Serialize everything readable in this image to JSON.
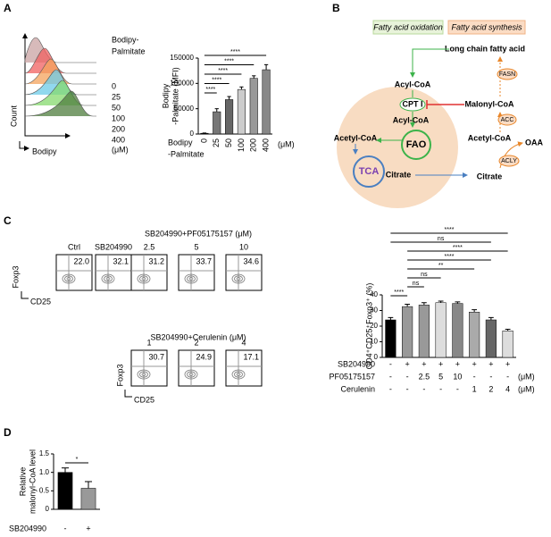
{
  "panel_labels": [
    "A",
    "B",
    "C",
    "D"
  ],
  "histogram": {
    "legend_title": [
      "Bodipy-",
      "Palmitate"
    ],
    "series": [
      "0",
      "25",
      "50",
      "100",
      "200",
      "400"
    ],
    "unit": "(μM)",
    "x_label": "Bodipy",
    "y_label": "Count"
  },
  "diagram": {
    "oxidation_title": "Fatty acid oxidation",
    "synthesis_title": "Fatty acid synthesis",
    "long_chain": "Long chain fatty acid",
    "acyl_coa_outer": "Acyl-CoA",
    "cpt1": "CPT I",
    "malonyl_coa": "Malonyl-CoA",
    "fasn": "FASN",
    "acc": "ACC",
    "acyl_coa_inner": "Acyl-CoA",
    "fao": "FAO",
    "acetyl_coa_inner": "Acetyl-CoA",
    "tca": "TCA",
    "citrate_inner": "Citrate",
    "acetyl_coa_outer": "Acetyl-CoA",
    "oaa": "OAA",
    "acly": "ACLY",
    "citrate_outer": "Citrate"
  },
  "flow": {
    "top_titles": [
      "Ctrl",
      "SB204990"
    ],
    "pf_title": "SB204990+PF05175157 (μM)",
    "pf_doses": [
      "2.5",
      "5",
      "10"
    ],
    "top_values": [
      "22.0",
      "32.1",
      "31.2",
      "33.7",
      "34.6"
    ],
    "cer_title": "SB204990+Cerulenin (μM)",
    "cer_doses": [
      "1",
      "2",
      "4"
    ],
    "cer_values": [
      "30.7",
      "24.9",
      "17.1"
    ],
    "y_label": "Foxp3",
    "x_label": "CD25"
  },
  "chart_data": [
    {
      "type": "bar",
      "y_label": [
        "Bodipy",
        "-Palmitate (MFI)"
      ],
      "categories": [
        "0",
        "25",
        "50",
        "100",
        "200",
        "400"
      ],
      "values": [
        1500,
        44000,
        68000,
        88000,
        110000,
        127000
      ],
      "errors": [
        500,
        6000,
        6000,
        5000,
        5000,
        10000
      ],
      "colors": [
        "#000000",
        "#777777",
        "#666666",
        "#cccccc",
        "#999999",
        "#888888"
      ],
      "ylim": [
        0,
        150000
      ],
      "yticks": [
        0,
        50000,
        100000,
        150000
      ],
      "x_label": [
        "Bodipy",
        "-Palmitate"
      ],
      "x_unit": "(μM)",
      "significance": [
        {
          "from": 0,
          "to": 5,
          "label": "****"
        },
        {
          "from": 0,
          "to": 4,
          "label": "****"
        },
        {
          "from": 0,
          "to": 3,
          "label": "****"
        },
        {
          "from": 0,
          "to": 2,
          "label": "****"
        },
        {
          "from": 0,
          "to": 1,
          "label": "****"
        }
      ]
    },
    {
      "type": "bar",
      "y_label": [
        "CD4⁺CD25⁺Foxp3⁺ (%)"
      ],
      "values": [
        24,
        32.5,
        33.5,
        35,
        34.5,
        29,
        24,
        17
      ],
      "errors": [
        1.5,
        1.5,
        1.5,
        1,
        1,
        1.5,
        1.5,
        1
      ],
      "colors": [
        "#000000",
        "#999999",
        "#999999",
        "#dddddd",
        "#888888",
        "#aaaaaa",
        "#666666",
        "#dddddd"
      ],
      "ylim": [
        0,
        40
      ],
      "yticks": [
        0,
        10,
        20,
        30,
        40
      ],
      "conditions": [
        {
          "name": "SB204990",
          "values": [
            "-",
            "+",
            "+",
            "+",
            "+",
            "+",
            "+",
            "+"
          ]
        },
        {
          "name": "PF05175157",
          "values": [
            "-",
            "-",
            "2.5",
            "5",
            "10",
            "-",
            "-",
            "-"
          ],
          "unit": "(μM)"
        },
        {
          "name": "Cerulenin",
          "values": [
            "-",
            "-",
            "-",
            "-",
            "-",
            "1",
            "2",
            "4"
          ],
          "unit": "(μM)"
        }
      ],
      "significance": [
        {
          "from": 0,
          "to": 7,
          "label": "****"
        },
        {
          "from": 0,
          "to": 6,
          "label": "ns"
        },
        {
          "from": 1,
          "to": 7,
          "label": "****"
        },
        {
          "from": 1,
          "to": 6,
          "label": "****"
        },
        {
          "from": 1,
          "to": 5,
          "label": "**"
        },
        {
          "from": 1,
          "to": 3,
          "label": "ns"
        },
        {
          "from": 1,
          "to": 2,
          "label": "ns"
        },
        {
          "from": 0,
          "to": 1,
          "label": "****"
        }
      ]
    },
    {
      "type": "bar",
      "y_label": [
        "Relative",
        "malonyl-CoA level"
      ],
      "categories": [
        "-",
        "+"
      ],
      "row_label": "SB204990",
      "values": [
        1.0,
        0.57
      ],
      "errors": [
        0.12,
        0.18
      ],
      "colors": [
        "#000000",
        "#999999"
      ],
      "ylim": [
        0,
        1.5
      ],
      "yticks": [
        0,
        0.5,
        {
          "value": 1,
          "label": "1.0"
        },
        1.5
      ],
      "significance": [
        {
          "from": 0,
          "to": 1,
          "label": "*"
        }
      ]
    }
  ]
}
